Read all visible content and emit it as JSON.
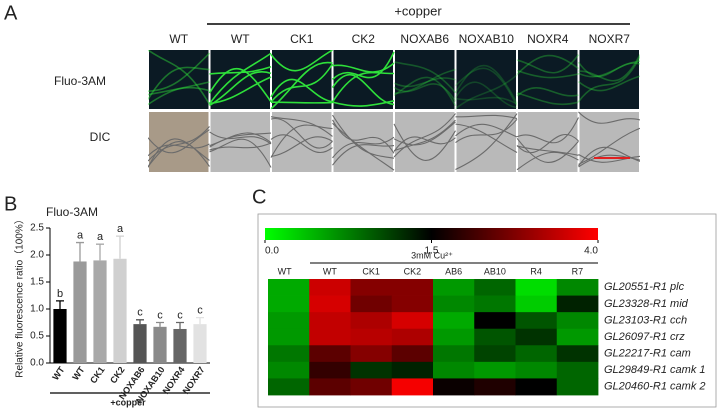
{
  "panel_a": {
    "label": "A",
    "group_label": "+copper",
    "columns": [
      "WT",
      "WT",
      "CK1",
      "CK2",
      "NOXAB6",
      "NOXAB10",
      "NOXR4",
      "NOXR7"
    ],
    "rows": [
      "Fluo-3AM",
      "DIC"
    ]
  },
  "chart_data": [
    {
      "type": "bar",
      "panel_label": "B",
      "title": "Fluo-3AM",
      "y_label": "Relative fluorescence ratio（100%）",
      "categories": [
        "WT",
        "WT",
        "CK1",
        "CK2",
        "NOXAB6",
        "NOXAB10",
        "NOXR4",
        "NOXR7"
      ],
      "values": [
        1.0,
        1.88,
        1.9,
        1.93,
        0.72,
        0.67,
        0.63,
        0.72
      ],
      "errors": [
        0.15,
        0.35,
        0.3,
        0.42,
        0.08,
        0.08,
        0.12,
        0.12
      ],
      "significance": [
        "b",
        "a",
        "a",
        "a",
        "c",
        "c",
        "c",
        "c"
      ],
      "colors": [
        "#000000",
        "#9a9a9a",
        "#a9a9a9",
        "#d0d0d0",
        "#555555",
        "#8a8a8a",
        "#666666",
        "#e2e2e2"
      ],
      "group_label": "+copper",
      "ylim": [
        0,
        2.5
      ],
      "yticks": [
        {
          "value": 0,
          "label": "0.0"
        },
        {
          "value": 0.5,
          "label": "0.5"
        },
        {
          "value": 1,
          "label": "1.0"
        },
        {
          "value": 1.5,
          "label": "1.5"
        },
        {
          "value": 2,
          "label": "2.0"
        },
        {
          "value": 2.5,
          "label": "2.5"
        }
      ]
    },
    {
      "type": "heatmap",
      "panel_label": "C",
      "group_label": "3mM Cu²⁺",
      "columns": [
        "WT",
        "WT",
        "CK1",
        "CK2",
        "AB6",
        "AB10",
        "R4",
        "R7"
      ],
      "rows": [
        "GL20551-R1 plc",
        "GL23328-R1 mid",
        "GL23103-R1 cch",
        "GL26097-R1 crz",
        "GL22217-R1 cam",
        "GL29849-R1 camk 1",
        "GL20460-R1 camk 2"
      ],
      "values": [
        [
          0.5,
          3.5,
          2.8,
          2.8,
          0.6,
          0.9,
          0.2,
          0.7
        ],
        [
          0.5,
          3.6,
          2.6,
          2.8,
          0.7,
          0.8,
          0.3,
          1.3
        ],
        [
          0.6,
          3.4,
          3.2,
          3.6,
          0.5,
          1.5,
          1.0,
          0.7
        ],
        [
          0.6,
          3.4,
          3.3,
          3.2,
          0.6,
          1.0,
          1.2,
          0.6
        ],
        [
          0.8,
          2.4,
          2.8,
          2.4,
          0.8,
          1.1,
          0.9,
          1.2
        ],
        [
          0.7,
          2.0,
          1.2,
          1.3,
          0.7,
          0.6,
          0.7,
          0.9
        ],
        [
          0.9,
          2.4,
          2.6,
          3.9,
          1.6,
          1.8,
          1.5,
          0.9
        ]
      ],
      "colorbar_ticks": [
        {
          "value": 0,
          "label": "0.0"
        },
        {
          "value": 1.5,
          "label": "1.5"
        },
        {
          "value": 4,
          "label": "4.0"
        }
      ],
      "colorbar_colors": [
        "#00ff00",
        "#000000",
        "#ff0000"
      ]
    }
  ]
}
